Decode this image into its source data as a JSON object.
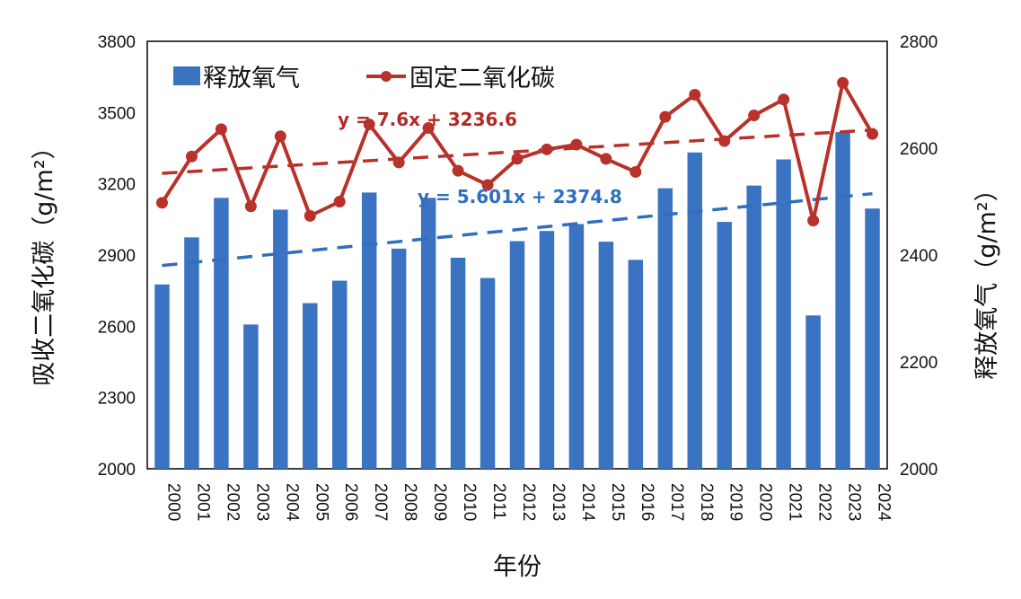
{
  "chart_data": {
    "type": "bar",
    "categories": [
      "2000",
      "2001",
      "2002",
      "2003",
      "2004",
      "2005",
      "2006",
      "2007",
      "2008",
      "2009",
      "2010",
      "2011",
      "2012",
      "2013",
      "2014",
      "2015",
      "2016",
      "2017",
      "2018",
      "2019",
      "2020",
      "2021",
      "2022",
      "2023",
      "2024"
    ],
    "series": [
      {
        "name": "释放氧气",
        "type": "bar",
        "axis": "right",
        "color": "#3a73c1",
        "values": [
          2345,
          2433,
          2507,
          2270,
          2485,
          2310,
          2352,
          2517,
          2412,
          2507,
          2395,
          2357,
          2426,
          2445,
          2458,
          2425,
          2391,
          2525,
          2592,
          2462,
          2530,
          2579,
          2287,
          2630,
          2487
        ]
      },
      {
        "name": "固定二氧化碳",
        "type": "line",
        "axis": "left",
        "color": "#b8312a",
        "values": [
          3120,
          3315,
          3430,
          3105,
          3400,
          3065,
          3125,
          3450,
          3290,
          3435,
          3255,
          3195,
          3305,
          3345,
          3365,
          3305,
          3250,
          3482,
          3575,
          3380,
          3488,
          3555,
          3045,
          3625,
          3410
        ]
      }
    ],
    "trendlines": [
      {
        "series": "固定二氧化碳",
        "slope": 7.6,
        "intercept": 3236.6,
        "label": "y = 7.6x + 3236.6",
        "color": "#b8312a"
      },
      {
        "series": "释放氧气",
        "slope": 5.601,
        "intercept": 2374.8,
        "label": "y = 5.601x + 2374.8",
        "color": "#2f6fbd"
      }
    ],
    "xlabel": "年份",
    "ylabel_left": "吸收二氧化碳（g/m²）",
    "ylabel_right": "释放氧气（g/m²）",
    "ylim_left": [
      2000,
      3800
    ],
    "yticks_left": [
      "2000",
      "2300",
      "2600",
      "2900",
      "3200",
      "3500",
      "3800"
    ],
    "ylim_right": [
      2000,
      2800
    ],
    "yticks_right": [
      "2000",
      "2200",
      "2400",
      "2600",
      "2800"
    ],
    "legend_position": "top-left",
    "grid": false
  }
}
